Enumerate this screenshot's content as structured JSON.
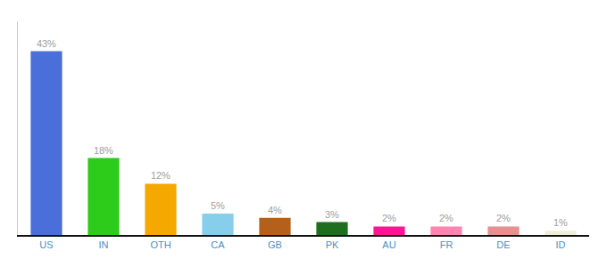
{
  "chart_data": {
    "type": "bar",
    "categories": [
      "US",
      "IN",
      "OTH",
      "CA",
      "GB",
      "PK",
      "AU",
      "FR",
      "DE",
      "ID"
    ],
    "values": [
      43,
      18,
      12,
      5,
      4,
      3,
      2,
      2,
      2,
      1
    ],
    "value_labels": [
      "43%",
      "18%",
      "12%",
      "5%",
      "4%",
      "3%",
      "2%",
      "2%",
      "2%",
      "1%"
    ],
    "colors": [
      "#4a6fdb",
      "#2ecc1a",
      "#f5a800",
      "#87ceeb",
      "#b5601a",
      "#1e6e1e",
      "#ff1493",
      "#ff85b0",
      "#e89090",
      "#f0eed8"
    ],
    "ylim": [
      0,
      50
    ],
    "data_labels": true,
    "tick_labels": "x",
    "grid": false
  }
}
